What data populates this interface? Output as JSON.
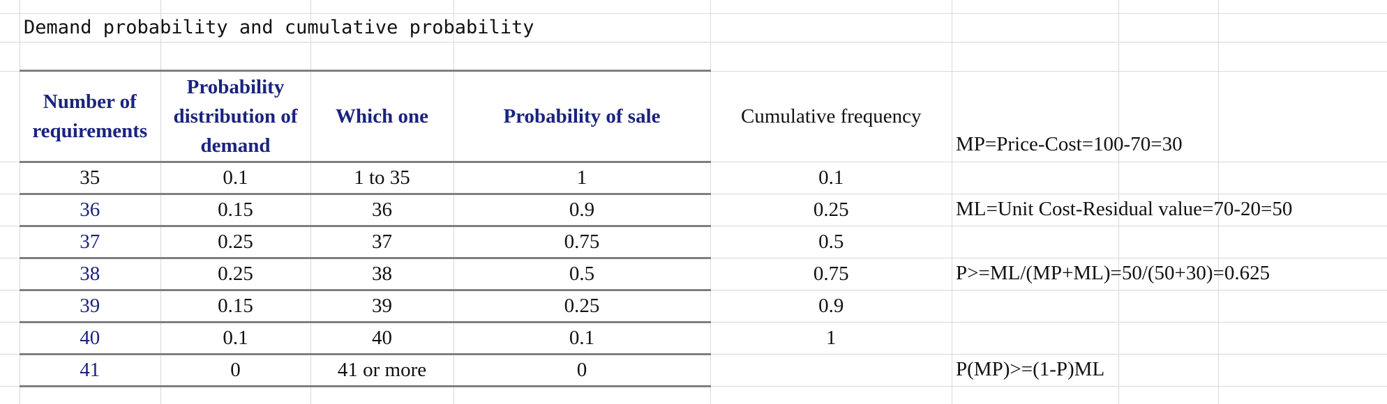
{
  "title": "Demand probability and cumulative probability",
  "table": {
    "headers": {
      "requirements": "Number of requirements",
      "probability": "Probability distribution of demand",
      "which": "Which one",
      "sale": "Probability of sale",
      "cumulative": "Cumulative frequency"
    },
    "rows": [
      {
        "req": "35",
        "prob": "0.1",
        "which": "1 to 35",
        "sale": "1",
        "cum": "0.1"
      },
      {
        "req": "36",
        "prob": "0.15",
        "which": "36",
        "sale": "0.9",
        "cum": "0.25"
      },
      {
        "req": "37",
        "prob": "0.25",
        "which": "37",
        "sale": "0.75",
        "cum": "0.5"
      },
      {
        "req": "38",
        "prob": "0.25",
        "which": "38",
        "sale": "0.5",
        "cum": "0.75"
      },
      {
        "req": "39",
        "prob": "0.15",
        "which": "39",
        "sale": "0.25",
        "cum": "0.9"
      },
      {
        "req": "40",
        "prob": "0.1",
        "which": "40",
        "sale": "0.1",
        "cum": "1"
      },
      {
        "req": "41",
        "prob": "0",
        "which": "41 or more",
        "sale": "0",
        "cum": ""
      }
    ]
  },
  "notes": {
    "mp": "MP=Price-Cost=100-70=30",
    "ml": "ML=Unit Cost-Residual value=70-20=50",
    "p": "P>=ML/(MP+ML)=50/(50+30)=0.625",
    "pmp": "P(MP)>=(1-P)ML"
  }
}
